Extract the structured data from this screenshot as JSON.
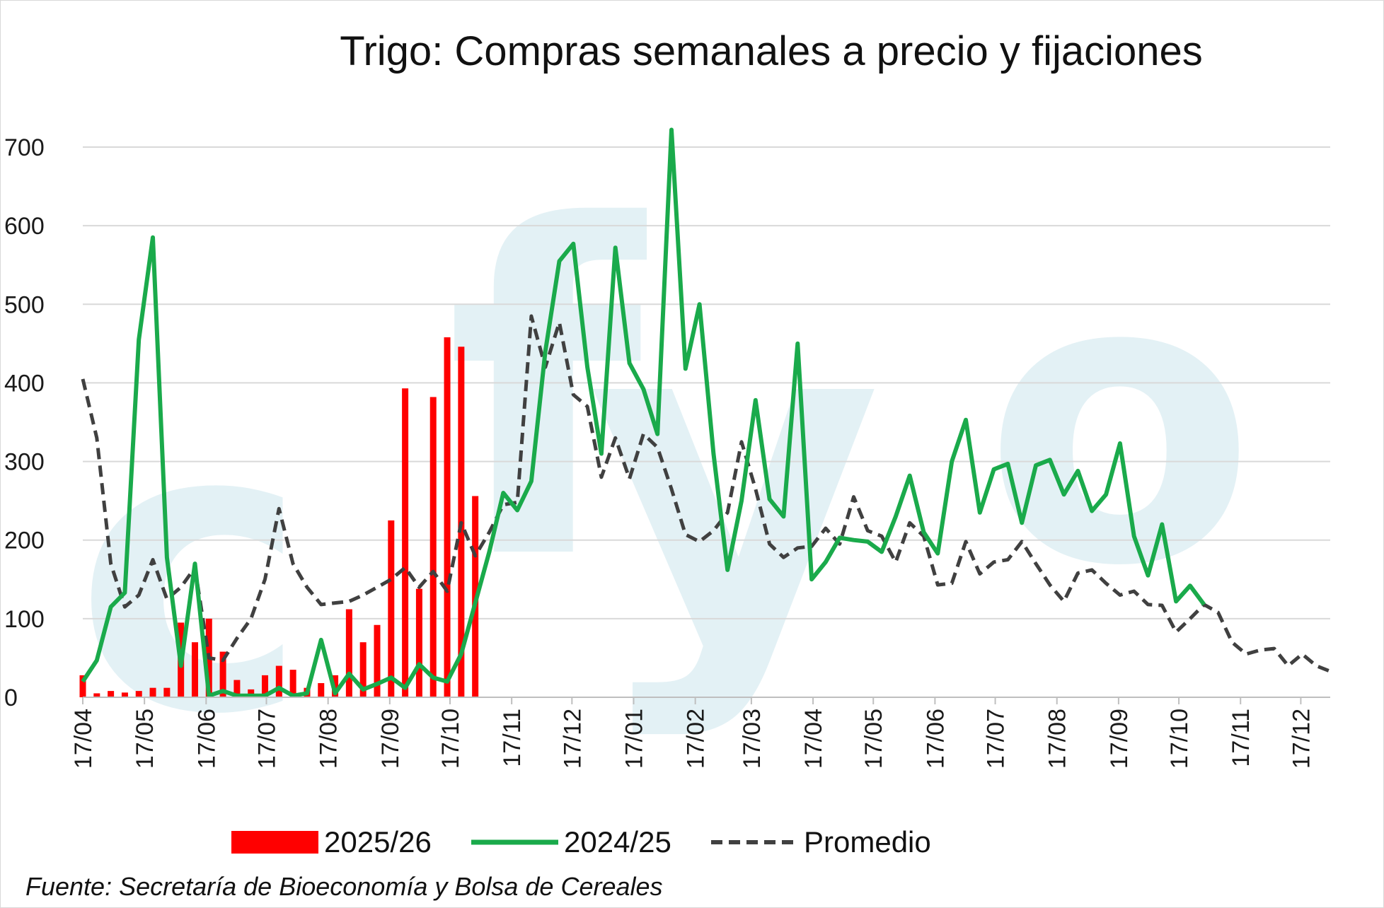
{
  "chart_data": {
    "type": "bar+line",
    "title": "Trigo: Compras semanales a precio y fijaciones",
    "watermark": "cfyo",
    "source": "Fuente: Secretaría de Bioeconomía y Bolsa de Cereales",
    "ylim": [
      0,
      700
    ],
    "yticks": [
      0,
      100,
      200,
      300,
      400,
      500,
      600,
      700
    ],
    "x_range_weeks": [
      0,
      89
    ],
    "month_ticks": [
      {
        "label": "17/04",
        "week": 0
      },
      {
        "label": "17/05",
        "week": 4.4
      },
      {
        "label": "17/06",
        "week": 8.8
      },
      {
        "label": "17/07",
        "week": 13.1
      },
      {
        "label": "17/08",
        "week": 17.5
      },
      {
        "label": "17/09",
        "week": 21.9
      },
      {
        "label": "17/10",
        "week": 26.2
      },
      {
        "label": "17/11",
        "week": 30.6
      },
      {
        "label": "17/12",
        "week": 34.9
      },
      {
        "label": "17/01",
        "week": 39.3
      },
      {
        "label": "17/02",
        "week": 43.7
      },
      {
        "label": "17/03",
        "week": 47.7
      },
      {
        "label": "17/04",
        "week": 52.1
      },
      {
        "label": "17/05",
        "week": 56.4
      },
      {
        "label": "17/06",
        "week": 60.8
      },
      {
        "label": "17/07",
        "week": 65.1
      },
      {
        "label": "17/08",
        "week": 69.5
      },
      {
        "label": "17/09",
        "week": 73.9
      },
      {
        "label": "17/10",
        "week": 78.2
      },
      {
        "label": "17/11",
        "week": 82.6
      },
      {
        "label": "17/12",
        "week": 86.9
      }
    ],
    "colors": {
      "bars": "#ff0000",
      "line_2425": "#1aaa4b",
      "promedio": "#404040",
      "grid": "#d9d9d9",
      "watermark": "#e3f1f5"
    },
    "series": [
      {
        "name": "2025/26",
        "kind": "bar",
        "values": [
          28,
          5,
          8,
          6,
          8,
          12,
          12,
          95,
          70,
          100,
          58,
          22,
          10,
          28,
          40,
          35,
          12,
          18,
          28,
          112,
          70,
          92,
          225,
          393,
          138,
          382,
          458,
          446,
          256
        ]
      },
      {
        "name": "2024/25",
        "kind": "line",
        "values": [
          20,
          47,
          115,
          133,
          455,
          585,
          178,
          40,
          170,
          2,
          8,
          2,
          2,
          2,
          12,
          2,
          5,
          73,
          5,
          30,
          10,
          17,
          25,
          12,
          42,
          25,
          20,
          55,
          120,
          185,
          260,
          238,
          275,
          440,
          555,
          577,
          420,
          310,
          572,
          425,
          392,
          335,
          722,
          418,
          500,
          310,
          162,
          250,
          378,
          252,
          230,
          450,
          150,
          172,
          203,
          200,
          198,
          185,
          230,
          282,
          210,
          183,
          300,
          353,
          235,
          290,
          297,
          222,
          295,
          302,
          258,
          288,
          237,
          258,
          323,
          205,
          155,
          220,
          122,
          142,
          118
        ]
      },
      {
        "name": "Promedio",
        "kind": "line-dashed",
        "values": [
          405,
          330,
          170,
          115,
          130,
          175,
          125,
          140,
          165,
          50,
          47,
          75,
          100,
          150,
          240,
          170,
          140,
          118,
          120,
          122,
          130,
          140,
          150,
          165,
          140,
          160,
          135,
          222,
          180,
          210,
          245,
          248,
          485,
          420,
          477,
          385,
          370,
          280,
          330,
          278,
          335,
          318,
          265,
          207,
          198,
          212,
          235,
          325,
          265,
          195,
          178,
          190,
          192,
          215,
          195,
          255,
          212,
          205,
          172,
          222,
          205,
          143,
          145,
          198,
          157,
          172,
          175,
          198,
          170,
          143,
          122,
          158,
          162,
          145,
          130,
          135,
          118,
          117,
          83,
          100,
          118,
          108,
          70,
          55,
          60,
          62,
          40,
          55,
          40,
          33
        ]
      }
    ],
    "legend": [
      {
        "label": "2025/26",
        "kind": "bar"
      },
      {
        "label": "2024/25",
        "kind": "line"
      },
      {
        "label": "Promedio",
        "kind": "line-dashed"
      }
    ]
  }
}
